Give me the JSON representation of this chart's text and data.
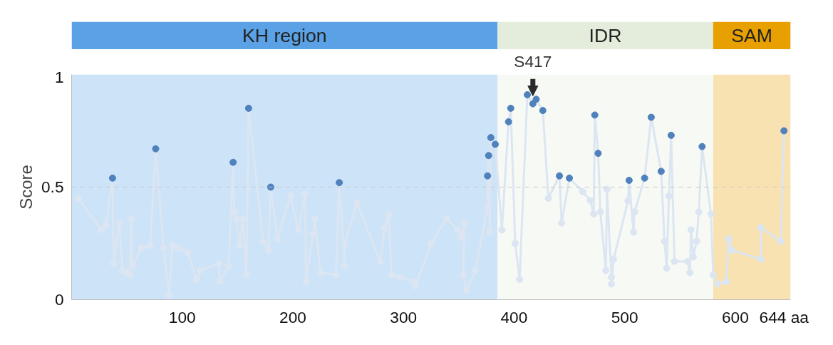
{
  "chart_data": {
    "type": "line",
    "ylabel": "Score",
    "x": [
      6,
      27,
      31,
      37,
      38,
      43,
      46,
      50,
      53,
      54,
      55,
      63,
      71,
      76,
      83,
      88,
      91,
      96,
      105,
      113,
      116,
      133,
      134,
      142,
      146,
      147,
      149,
      152,
      155,
      158,
      160,
      173,
      178,
      180,
      186,
      198,
      205,
      211,
      212,
      218,
      220,
      225,
      239,
      242,
      247,
      247,
      258,
      279,
      283,
      287,
      289,
      297,
      310,
      311,
      325,
      339,
      349,
      352,
      355,
      354,
      357,
      365,
      376,
      376,
      377,
      378,
      379,
      383,
      389,
      395,
      397,
      401,
      405,
      412,
      417,
      420,
      426,
      431,
      441,
      443,
      450,
      462,
      469,
      472,
      473,
      476,
      478,
      483,
      484,
      488,
      488,
      490,
      503,
      504,
      508,
      509,
      518,
      524,
      533,
      536,
      538,
      540,
      542,
      545,
      557,
      559,
      560,
      562,
      565,
      567,
      570,
      578,
      580,
      584,
      592,
      594,
      597,
      623,
      623,
      641,
      644
    ],
    "series": [
      {
        "color": "#dce6f2",
        "colors": [
          "#dce6f2",
          "#dce6f2",
          "#dce6f2",
          "#4f81bd",
          "#dce6f2",
          "#dce6f2",
          "#dce6f2",
          "#dce6f2",
          "#dce6f2",
          "#dce6f2",
          "#dce6f2",
          "#dce6f2",
          "#dce6f2",
          "#4f81bd",
          "#dce6f2",
          "#dce6f2",
          "#dce6f2",
          "#dce6f2",
          "#dce6f2",
          "#dce6f2",
          "#dce6f2",
          "#dce6f2",
          "#dce6f2",
          "#dce6f2",
          "#4f81bd",
          "#dce6f2",
          "#dce6f2",
          "#dce6f2",
          "#dce6f2",
          "#dce6f2",
          "#4f81bd",
          "#dce6f2",
          "#dce6f2",
          "#4f81bd",
          "#dce6f2",
          "#dce6f2",
          "#dce6f2",
          "#dce6f2",
          "#dce6f2",
          "#dce6f2",
          "#dce6f2",
          "#dce6f2",
          "#dce6f2",
          "#4f81bd",
          "#dce6f2",
          "#dce6f2",
          "#dce6f2",
          "#dce6f2",
          "#dce6f2",
          "#dce6f2",
          "#dce6f2",
          "#dce6f2",
          "#dce6f2",
          "#dce6f2",
          "#dce6f2",
          "#dce6f2",
          "#dce6f2",
          "#dce6f2",
          "#dce6f2",
          "#dce6f2",
          "#dce6f2",
          "#dce6f2",
          "#dce6f2",
          "#4f81bd",
          "#4f81bd",
          "#dce6f2",
          "#4f81bd",
          "#4f81bd",
          "#dce6f2",
          "#4f81bd",
          "#4f81bd",
          "#dce6f2",
          "#dce6f2",
          "#4f81bd",
          "#4f81bd",
          "#4f81bd",
          "#4f81bd",
          "#dce6f2",
          "#4f81bd",
          "#dce6f2",
          "#4f81bd",
          "#dce6f2",
          "#dce6f2",
          "#dce6f2",
          "#4f81bd",
          "#4f81bd",
          "#dce6f2",
          "#dce6f2",
          "#dce6f2",
          "#dce6f2",
          "#dce6f2",
          "#dce6f2",
          "#dce6f2",
          "#4f81bd",
          "#dce6f2",
          "#dce6f2",
          "#4f81bd",
          "#4f81bd",
          "#4f81bd",
          "#dce6f2",
          "#dce6f2",
          "#dce6f2",
          "#4f81bd",
          "#dce6f2",
          "#dce6f2",
          "#dce6f2",
          "#dce6f2",
          "#dce6f2",
          "#dce6f2",
          "#dce6f2",
          "#4f81bd",
          "#dce6f2",
          "#dce6f2",
          "#dce6f2",
          "#dce6f2",
          "#dce6f2",
          "#dce6f2",
          "#dce6f2",
          "#dce6f2",
          "#dce6f2",
          "#4f81bd"
        ],
        "values": [
          0.45,
          0.31,
          0.33,
          0.54,
          0.16,
          0.34,
          0.13,
          0.12,
          0.11,
          0.36,
          0.15,
          0.23,
          0.24,
          0.67,
          0.23,
          0.02,
          0.24,
          0.23,
          0.21,
          0.09,
          0.13,
          0.16,
          0.08,
          0.15,
          0.61,
          0.39,
          0.36,
          0.24,
          0.36,
          0.11,
          0.85,
          0.26,
          0.22,
          0.5,
          0.27,
          0.46,
          0.31,
          0.47,
          0.08,
          0.29,
          0.36,
          0.12,
          0.11,
          0.52,
          0.15,
          0.25,
          0.43,
          0.17,
          0.32,
          0.38,
          0.11,
          0.1,
          0.08,
          0.06,
          0.25,
          0.36,
          0.31,
          0.28,
          0.34,
          0.11,
          0.04,
          0.13,
          0.41,
          0.55,
          0.64,
          0.3,
          0.72,
          0.69,
          0.31,
          0.79,
          0.85,
          0.25,
          0.09,
          0.91,
          0.87,
          0.89,
          0.84,
          0.45,
          0.55,
          0.34,
          0.54,
          0.48,
          0.44,
          0.38,
          0.82,
          0.65,
          0.39,
          0.13,
          0.49,
          0.1,
          0.07,
          0.18,
          0.44,
          0.53,
          0.3,
          0.39,
          0.54,
          0.81,
          0.57,
          0.26,
          0.14,
          0.46,
          0.73,
          0.17,
          0.17,
          0.12,
          0.31,
          0.19,
          0.26,
          0.39,
          0.68,
          0.38,
          0.11,
          0.07,
          0.08,
          0.27,
          0.22,
          0.18,
          0.32,
          0.26,
          0.75
        ]
      }
    ],
    "marker": "circle",
    "line_style": "solid",
    "xlim": [
      0,
      650
    ],
    "ylim": [
      0,
      1
    ],
    "xticks": [
      100,
      200,
      300,
      400,
      500,
      600,
      {
        "value": 644,
        "label": "644 aa"
      }
    ],
    "yticks": [
      0,
      0.5,
      1
    ],
    "grid": false,
    "ref_lines": [
      {
        "axis": "y",
        "value": 0.5,
        "color": "#c8c8c8",
        "line_style": "dashed"
      }
    ],
    "bands": [
      {
        "axis": "x",
        "from": 0,
        "to": 385,
        "label": "KH region",
        "color": "#5aa2e5"
      },
      {
        "axis": "x",
        "from": 385,
        "to": 580,
        "label": "IDR",
        "color": "#e4ecdb"
      },
      {
        "axis": "x",
        "from": 580,
        "to": 650,
        "label": "SAM",
        "color": "#e8a000"
      }
    ],
    "annotations": [
      {
        "text": "S417",
        "x": 417,
        "y": 0.89
      }
    ]
  }
}
